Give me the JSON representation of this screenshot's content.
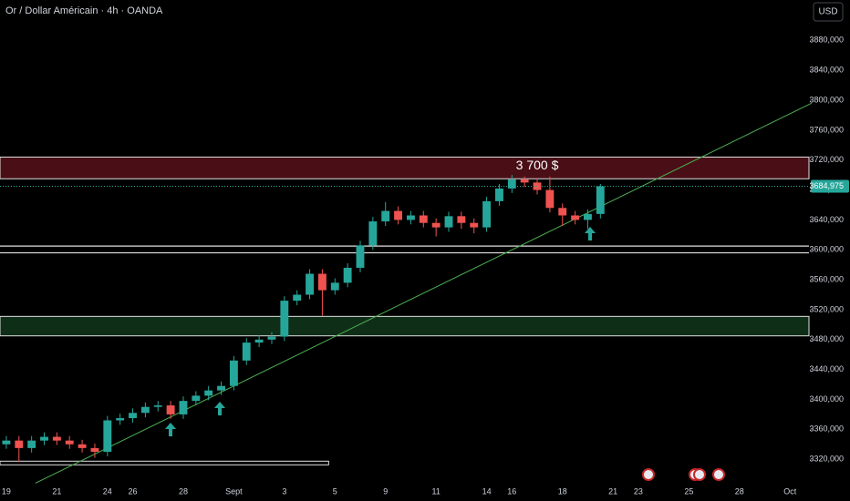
{
  "chart_data": {
    "type": "candlestick",
    "title": "Or / Dollar Américain · 4h · OANDA",
    "currency": "USD",
    "categories": [
      "19",
      null,
      null,
      null,
      "21",
      null,
      null,
      null,
      "24",
      null,
      "26",
      null,
      null,
      null,
      "28",
      null,
      null,
      null,
      "Sept",
      null,
      null,
      null,
      "3",
      null,
      null,
      null,
      "5",
      null,
      null,
      null,
      "9",
      null,
      null,
      null,
      "11",
      null,
      null,
      null,
      "14",
      null,
      "16",
      null,
      null,
      null,
      "18",
      null,
      null,
      null,
      "21",
      null,
      "23",
      null,
      null,
      null,
      "25",
      null,
      null,
      null,
      "28",
      null,
      null,
      null,
      "Oct",
      null
    ],
    "open": [
      3340,
      3345,
      3335,
      3345,
      3350,
      3345,
      3340,
      3335,
      3330,
      3372,
      3375,
      3382,
      3390,
      3392,
      3380,
      3398,
      3405,
      3412,
      3418,
      3452,
      3476,
      3480,
      3484,
      3532,
      3540,
      3568,
      3546,
      3556,
      3576,
      3606,
      3638,
      3652,
      3640,
      3646,
      3636,
      3630,
      3645,
      3636,
      3630,
      3665,
      3682,
      3694,
      3690,
      3680,
      3656,
      3646,
      3640,
      3648,
      null,
      null,
      null,
      null,
      null,
      null,
      null,
      null,
      null,
      null,
      null,
      null,
      null,
      null,
      null,
      null
    ],
    "high": [
      3351,
      3351,
      3351,
      3356,
      3356,
      3351,
      3346,
      3341,
      3378,
      3381,
      3388,
      3396,
      3398,
      3398,
      3404,
      3411,
      3418,
      3424,
      3458,
      3482,
      3486,
      3490,
      3538,
      3546,
      3574,
      3574,
      3562,
      3582,
      3612,
      3644,
      3664,
      3658,
      3652,
      3652,
      3642,
      3651,
      3651,
      3642,
      3671,
      3688,
      3700,
      3698,
      3696,
      3698,
      3662,
      3652,
      3654,
      3688,
      null,
      null,
      null,
      null,
      null,
      null,
      null,
      null,
      null,
      null,
      null,
      null,
      null,
      null,
      null,
      null
    ],
    "low": [
      3334,
      3316,
      3329,
      3339,
      3339,
      3334,
      3329,
      3322,
      3324,
      3366,
      3369,
      3376,
      3384,
      3374,
      3374,
      3392,
      3399,
      3406,
      3412,
      3446,
      3470,
      3474,
      3478,
      3526,
      3534,
      3512,
      3540,
      3550,
      3570,
      3600,
      3632,
      3634,
      3634,
      3630,
      3618,
      3624,
      3628,
      3622,
      3624,
      3659,
      3676,
      3684,
      3674,
      3650,
      3632,
      3634,
      3628,
      3642,
      null,
      null,
      null,
      null,
      null,
      null,
      null,
      null,
      null,
      null,
      null,
      null,
      null,
      null,
      null,
      null
    ],
    "close": [
      3345,
      3335,
      3345,
      3350,
      3345,
      3340,
      3335,
      3330,
      3372,
      3375,
      3382,
      3390,
      3392,
      3380,
      3398,
      3405,
      3412,
      3418,
      3452,
      3476,
      3480,
      3484,
      3532,
      3540,
      3568,
      3546,
      3556,
      3576,
      3606,
      3638,
      3652,
      3640,
      3646,
      3636,
      3630,
      3645,
      3636,
      3630,
      3665,
      3682,
      3694,
      3690,
      3680,
      3656,
      3646,
      3640,
      3648,
      3685,
      null,
      null,
      null,
      null,
      null,
      null,
      null,
      null,
      null,
      null,
      null,
      null,
      null,
      null,
      null,
      null
    ],
    "up_color": "#26a69a",
    "down_color": "#ef5350",
    "ylim": [
      3291,
      3934
    ],
    "yticks": [
      {
        "value": 3320,
        "label": "3320,000"
      },
      {
        "value": 3360,
        "label": "3360,000"
      },
      {
        "value": 3400,
        "label": "3400,000"
      },
      {
        "value": 3440,
        "label": "3440,000"
      },
      {
        "value": 3480,
        "label": "3480,000"
      },
      {
        "value": 3520,
        "label": "3520,000"
      },
      {
        "value": 3560,
        "label": "3560,000"
      },
      {
        "value": 3600,
        "label": "3600,000"
      },
      {
        "value": 3640,
        "label": "3640,000"
      },
      {
        "value": 3680,
        "label": "3680,000"
      },
      {
        "value": 3720,
        "label": "3720,000"
      },
      {
        "value": 3760,
        "label": "3760,000"
      },
      {
        "value": 3800,
        "label": "3800,000"
      },
      {
        "value": 3840,
        "label": "3840,000"
      },
      {
        "value": 3880,
        "label": "3880,000"
      }
    ],
    "last_price": {
      "value": 3684.975,
      "label": "3684,975"
    },
    "zones": [
      {
        "range": [
          3695,
          3724
        ],
        "color": "#4a0f16"
      },
      {
        "range": [
          3485,
          3511
        ],
        "color": "#0f2e17"
      }
    ],
    "levels": [
      3605,
      3596
    ],
    "support": {
      "value": 3315,
      "x_range": [
        0,
        26
      ]
    },
    "trendline": {
      "x": [
        2.8,
        64.2
      ],
      "y": [
        3288,
        3796
      ],
      "color": "#4caf50"
    },
    "annotation": {
      "text": "3 700 $",
      "x": 42,
      "y": 3712
    }
  }
}
